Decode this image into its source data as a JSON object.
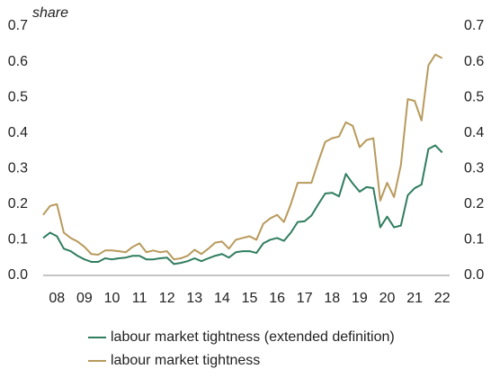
{
  "chart_data": {
    "type": "line",
    "y_label": "share",
    "categories": [
      null,
      "08",
      null,
      null,
      null,
      "09",
      null,
      null,
      null,
      "10",
      null,
      null,
      null,
      "11",
      null,
      null,
      null,
      "12",
      null,
      null,
      null,
      "13",
      null,
      null,
      null,
      "14",
      null,
      null,
      null,
      "15",
      null,
      null,
      null,
      "16",
      null,
      null,
      null,
      "17",
      null,
      null,
      null,
      "18",
      null,
      null,
      null,
      "19",
      null,
      null,
      null,
      "20",
      null,
      null,
      null,
      "21",
      null,
      null,
      null,
      "22",
      null
    ],
    "series": [
      {
        "name": "labour market tightness (extended definition)",
        "color": "#2f7d5f",
        "values": [
          0.105,
          0.12,
          0.11,
          0.075,
          0.068,
          0.055,
          0.045,
          0.038,
          0.038,
          0.048,
          0.045,
          0.048,
          0.05,
          0.055,
          0.055,
          0.045,
          0.045,
          0.048,
          0.05,
          0.032,
          0.035,
          0.04,
          0.048,
          0.04,
          0.048,
          0.055,
          0.06,
          0.05,
          0.065,
          0.068,
          0.068,
          0.063,
          0.09,
          0.1,
          0.105,
          0.097,
          0.12,
          0.15,
          0.152,
          0.168,
          0.2,
          0.23,
          0.232,
          0.222,
          0.285,
          0.258,
          0.235,
          0.248,
          0.245,
          0.135,
          0.165,
          0.135,
          0.14,
          0.225,
          0.245,
          0.255,
          0.355,
          0.365,
          0.345
        ]
      },
      {
        "name": "labour market tightness",
        "color": "#b89a5c",
        "values": [
          0.17,
          0.195,
          0.2,
          0.12,
          0.105,
          0.095,
          0.08,
          0.06,
          0.058,
          0.07,
          0.07,
          0.068,
          0.065,
          0.08,
          0.09,
          0.065,
          0.07,
          0.065,
          0.068,
          0.045,
          0.048,
          0.055,
          0.072,
          0.06,
          0.075,
          0.092,
          0.095,
          0.075,
          0.1,
          0.105,
          0.11,
          0.1,
          0.145,
          0.16,
          0.17,
          0.15,
          0.2,
          0.26,
          0.26,
          0.26,
          0.32,
          0.375,
          0.385,
          0.39,
          0.43,
          0.42,
          0.36,
          0.38,
          0.385,
          0.21,
          0.26,
          0.22,
          0.31,
          0.495,
          0.49,
          0.435,
          0.59,
          0.62,
          0.61
        ]
      }
    ],
    "ylim": [
      0,
      0.7
    ],
    "yticks": [
      {
        "value": 0,
        "label": "0.0"
      },
      0.1,
      0.2,
      0.3,
      0.4,
      0.5,
      0.6,
      0.7
    ],
    "y2lim": [
      0,
      0.7
    ],
    "y2ticks": [
      {
        "value": 0,
        "label": "0.0"
      },
      0.1,
      0.2,
      0.3,
      0.4,
      0.5,
      0.6,
      0.7
    ]
  }
}
